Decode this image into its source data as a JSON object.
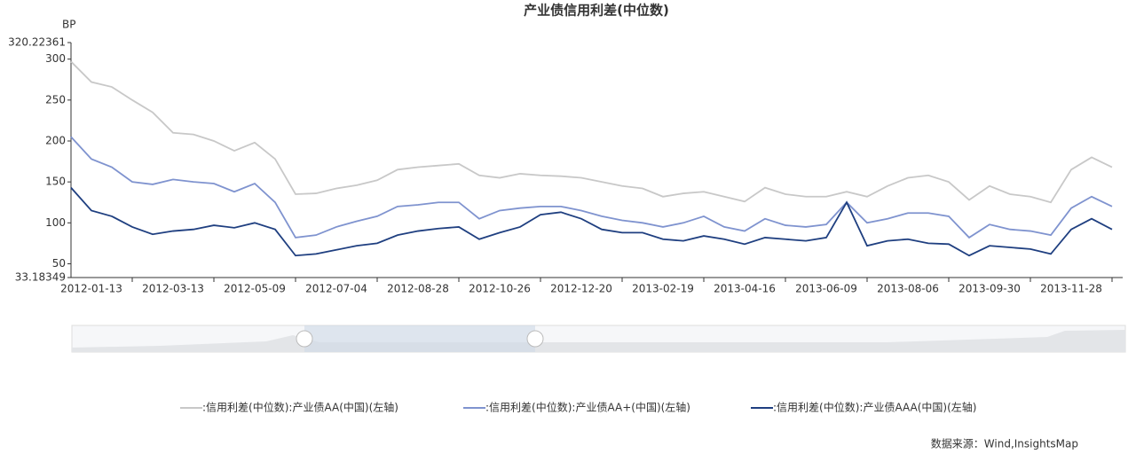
{
  "chart_data": {
    "type": "line",
    "title": "产业债信用利差(中位数)",
    "y_label": "BP",
    "source": "数据来源：Wind,InsightsMap",
    "categories": [
      null,
      "2012-01-13",
      null,
      null,
      null,
      "2012-03-13",
      null,
      null,
      null,
      "2012-05-09",
      null,
      null,
      null,
      "2012-07-04",
      null,
      null,
      null,
      "2012-08-28",
      null,
      null,
      null,
      "2012-10-26",
      null,
      null,
      null,
      "2012-12-20",
      null,
      null,
      null,
      "2013-02-19",
      null,
      null,
      null,
      "2013-04-16",
      null,
      null,
      null,
      "2013-06-09",
      null,
      null,
      null,
      "2013-08-06",
      null,
      null,
      null,
      "2013-09-30",
      null,
      null,
      null,
      "2013-11-28",
      null,
      null
    ],
    "series": [
      {
        "name": ":信用利差(中位数):产业债AA(中国)(左轴)",
        "color": "#c8c8c8",
        "values": [
          297,
          272,
          266,
          250,
          235,
          210,
          208,
          200,
          188,
          198,
          178,
          135,
          136,
          142,
          146,
          152,
          165,
          168,
          170,
          172,
          158,
          155,
          160,
          158,
          157,
          155,
          150,
          145,
          142,
          132,
          136,
          138,
          132,
          126,
          143,
          135,
          132,
          132,
          138,
          132,
          145,
          155,
          158,
          150,
          128,
          145,
          135,
          132,
          125,
          165,
          180,
          168
        ]
      },
      {
        "name": ":信用利差(中位数):产业债AA+(中国)(左轴)",
        "color": "#7f93cf",
        "values": [
          205,
          178,
          168,
          150,
          147,
          153,
          150,
          148,
          138,
          148,
          125,
          82,
          85,
          95,
          102,
          108,
          120,
          122,
          125,
          125,
          105,
          115,
          118,
          120,
          120,
          115,
          108,
          103,
          100,
          95,
          100,
          108,
          95,
          90,
          105,
          97,
          95,
          98,
          125,
          100,
          105,
          112,
          112,
          108,
          82,
          98,
          92,
          90,
          85,
          118,
          132,
          120
        ]
      },
      {
        "name": ":信用利差(中位数):产业债AAA(中国)(左轴)",
        "color": "#1f3f80",
        "values": [
          143,
          115,
          108,
          95,
          86,
          90,
          92,
          97,
          94,
          100,
          92,
          60,
          62,
          67,
          72,
          75,
          85,
          90,
          93,
          95,
          80,
          88,
          95,
          110,
          113,
          105,
          92,
          88,
          88,
          80,
          78,
          84,
          80,
          74,
          82,
          80,
          78,
          82,
          125,
          72,
          78,
          80,
          75,
          74,
          60,
          72,
          70,
          68,
          62,
          92,
          105,
          92
        ]
      }
    ],
    "ylim": [
      33.18349,
      320.22361
    ],
    "yticks": [
      33.18349,
      50,
      100,
      150,
      200,
      250,
      300,
      320.22361
    ],
    "grid": false
  }
}
